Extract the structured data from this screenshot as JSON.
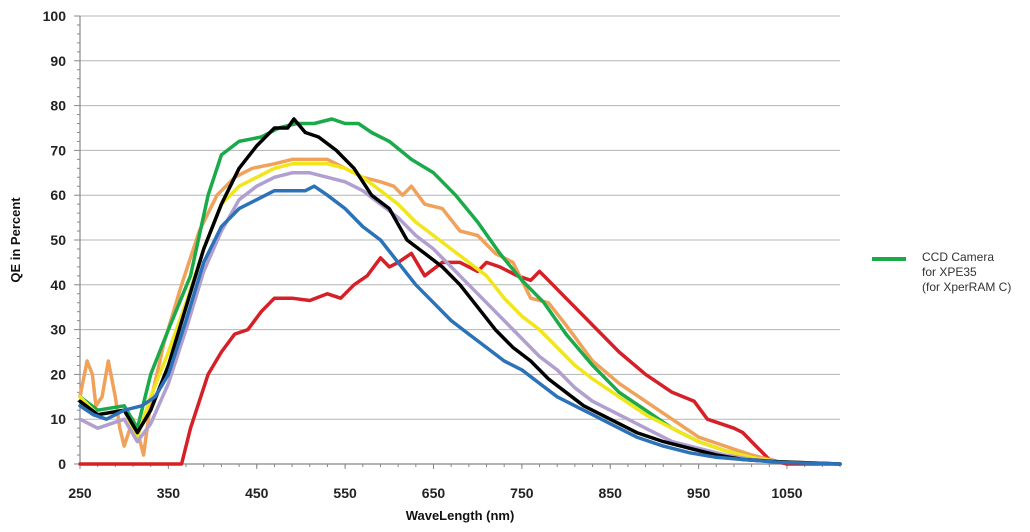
{
  "chart_data": {
    "type": "line",
    "xlabel": "WaveLength (nm)",
    "ylabel": "QE in Percent",
    "xlim": [
      250,
      1110
    ],
    "ylim": [
      0,
      100
    ],
    "x_ticks": [
      "250",
      "350",
      "450",
      "550",
      "650",
      "750",
      "850",
      "950",
      "1050"
    ],
    "y_ticks": [
      "0",
      "10",
      "20",
      "30",
      "40",
      "50",
      "60",
      "70",
      "80",
      "90",
      "100"
    ],
    "grid": "horizontal",
    "legend_position": "right",
    "legend": {
      "color": "#1aaa4a",
      "lines": [
        "CCD Camera",
        "for XPE35",
        "(for XperRAM C)"
      ]
    },
    "series": [
      {
        "color": "#d62027",
        "points": [
          [
            250,
            0
          ],
          [
            355,
            0
          ],
          [
            365,
            0
          ],
          [
            375,
            8
          ],
          [
            385,
            14
          ],
          [
            395,
            20
          ],
          [
            410,
            25
          ],
          [
            425,
            29
          ],
          [
            440,
            30
          ],
          [
            455,
            34
          ],
          [
            470,
            37
          ],
          [
            490,
            37
          ],
          [
            510,
            36.5
          ],
          [
            530,
            38
          ],
          [
            545,
            37
          ],
          [
            560,
            40
          ],
          [
            575,
            42
          ],
          [
            590,
            46
          ],
          [
            600,
            44
          ],
          [
            610,
            45
          ],
          [
            625,
            47
          ],
          [
            640,
            42
          ],
          [
            660,
            45
          ],
          [
            680,
            45
          ],
          [
            700,
            43
          ],
          [
            710,
            45
          ],
          [
            725,
            44
          ],
          [
            745,
            42
          ],
          [
            760,
            41
          ],
          [
            770,
            43
          ],
          [
            780,
            41
          ],
          [
            800,
            37
          ],
          [
            830,
            31
          ],
          [
            860,
            25
          ],
          [
            890,
            20
          ],
          [
            920,
            16
          ],
          [
            945,
            14
          ],
          [
            960,
            10
          ],
          [
            975,
            9
          ],
          [
            990,
            8
          ],
          [
            1000,
            7
          ],
          [
            1015,
            4
          ],
          [
            1030,
            1
          ],
          [
            1050,
            0
          ],
          [
            1110,
            0
          ]
        ]
      },
      {
        "color": "#f0a15a",
        "points": [
          [
            250,
            15
          ],
          [
            258,
            23
          ],
          [
            264,
            20
          ],
          [
            268,
            13
          ],
          [
            275,
            15
          ],
          [
            282,
            23
          ],
          [
            290,
            15
          ],
          [
            295,
            8
          ],
          [
            300,
            4
          ],
          [
            310,
            10
          ],
          [
            318,
            5
          ],
          [
            322,
            2
          ],
          [
            330,
            14
          ],
          [
            345,
            27
          ],
          [
            365,
            40
          ],
          [
            385,
            52
          ],
          [
            405,
            60
          ],
          [
            425,
            64
          ],
          [
            445,
            66
          ],
          [
            470,
            67
          ],
          [
            490,
            68
          ],
          [
            510,
            68
          ],
          [
            530,
            68
          ],
          [
            550,
            66
          ],
          [
            570,
            64
          ],
          [
            590,
            63
          ],
          [
            605,
            62
          ],
          [
            615,
            60
          ],
          [
            625,
            62
          ],
          [
            640,
            58
          ],
          [
            660,
            57
          ],
          [
            680,
            52
          ],
          [
            700,
            51
          ],
          [
            720,
            47
          ],
          [
            740,
            45
          ],
          [
            760,
            37
          ],
          [
            780,
            36
          ],
          [
            800,
            31
          ],
          [
            830,
            23
          ],
          [
            860,
            18
          ],
          [
            890,
            14
          ],
          [
            920,
            10
          ],
          [
            950,
            6
          ],
          [
            980,
            4
          ],
          [
            1010,
            2
          ],
          [
            1040,
            0.5
          ],
          [
            1080,
            0.2
          ],
          [
            1110,
            0
          ]
        ]
      },
      {
        "color": "#1aaa4a",
        "points": [
          [
            250,
            15
          ],
          [
            270,
            12
          ],
          [
            300,
            13
          ],
          [
            315,
            8
          ],
          [
            330,
            20
          ],
          [
            350,
            30
          ],
          [
            375,
            42
          ],
          [
            395,
            60
          ],
          [
            410,
            69
          ],
          [
            430,
            72
          ],
          [
            455,
            73
          ],
          [
            475,
            75
          ],
          [
            495,
            76
          ],
          [
            515,
            76
          ],
          [
            535,
            77
          ],
          [
            550,
            76
          ],
          [
            565,
            76
          ],
          [
            580,
            74
          ],
          [
            600,
            72
          ],
          [
            625,
            68
          ],
          [
            650,
            65
          ],
          [
            675,
            60
          ],
          [
            700,
            54
          ],
          [
            725,
            47
          ],
          [
            750,
            41
          ],
          [
            775,
            36
          ],
          [
            800,
            29
          ],
          [
            830,
            22
          ],
          [
            860,
            16
          ],
          [
            890,
            12
          ],
          [
            920,
            8
          ],
          [
            950,
            5
          ],
          [
            980,
            3
          ],
          [
            1010,
            1.5
          ],
          [
            1040,
            0.5
          ],
          [
            1110,
            0
          ]
        ]
      },
      {
        "color": "#f2e61a",
        "points": [
          [
            250,
            15
          ],
          [
            270,
            11
          ],
          [
            300,
            12
          ],
          [
            315,
            6
          ],
          [
            330,
            15
          ],
          [
            350,
            25
          ],
          [
            370,
            36
          ],
          [
            390,
            48
          ],
          [
            410,
            58
          ],
          [
            430,
            62
          ],
          [
            450,
            64
          ],
          [
            470,
            66
          ],
          [
            490,
            67
          ],
          [
            510,
            67
          ],
          [
            530,
            67
          ],
          [
            550,
            66
          ],
          [
            570,
            64
          ],
          [
            590,
            61
          ],
          [
            610,
            58
          ],
          [
            630,
            54
          ],
          [
            650,
            51
          ],
          [
            670,
            48
          ],
          [
            690,
            45
          ],
          [
            710,
            42
          ],
          [
            730,
            37
          ],
          [
            750,
            33
          ],
          [
            770,
            30
          ],
          [
            790,
            26
          ],
          [
            810,
            22
          ],
          [
            830,
            19
          ],
          [
            860,
            15
          ],
          [
            890,
            11
          ],
          [
            920,
            8
          ],
          [
            950,
            5
          ],
          [
            980,
            3
          ],
          [
            1010,
            1.5
          ],
          [
            1040,
            0.5
          ],
          [
            1110,
            0
          ]
        ]
      },
      {
        "color": "#b09fcf",
        "points": [
          [
            250,
            10
          ],
          [
            270,
            8
          ],
          [
            300,
            10
          ],
          [
            315,
            5
          ],
          [
            330,
            9
          ],
          [
            350,
            18
          ],
          [
            370,
            30
          ],
          [
            390,
            43
          ],
          [
            410,
            52
          ],
          [
            430,
            59
          ],
          [
            450,
            62
          ],
          [
            470,
            64
          ],
          [
            490,
            65
          ],
          [
            510,
            65
          ],
          [
            530,
            64
          ],
          [
            550,
            63
          ],
          [
            570,
            61
          ],
          [
            590,
            58
          ],
          [
            610,
            55
          ],
          [
            630,
            51
          ],
          [
            650,
            48
          ],
          [
            670,
            44
          ],
          [
            690,
            40
          ],
          [
            710,
            36
          ],
          [
            730,
            32
          ],
          [
            750,
            28
          ],
          [
            770,
            24
          ],
          [
            790,
            21
          ],
          [
            810,
            17
          ],
          [
            830,
            14
          ],
          [
            860,
            11
          ],
          [
            890,
            8
          ],
          [
            920,
            5
          ],
          [
            950,
            3.5
          ],
          [
            980,
            2
          ],
          [
            1010,
            1
          ],
          [
            1040,
            0.5
          ],
          [
            1110,
            0
          ]
        ]
      },
      {
        "color": "#000000",
        "points": [
          [
            250,
            14
          ],
          [
            270,
            11
          ],
          [
            300,
            12
          ],
          [
            315,
            7
          ],
          [
            330,
            12
          ],
          [
            350,
            22
          ],
          [
            370,
            35
          ],
          [
            390,
            48
          ],
          [
            410,
            58
          ],
          [
            430,
            66
          ],
          [
            450,
            71
          ],
          [
            470,
            75
          ],
          [
            485,
            75
          ],
          [
            492,
            77
          ],
          [
            505,
            74
          ],
          [
            520,
            73
          ],
          [
            540,
            70
          ],
          [
            560,
            66
          ],
          [
            580,
            60
          ],
          [
            600,
            57
          ],
          [
            620,
            50
          ],
          [
            640,
            47
          ],
          [
            660,
            44
          ],
          [
            680,
            40
          ],
          [
            700,
            35
          ],
          [
            720,
            30
          ],
          [
            740,
            26
          ],
          [
            760,
            23
          ],
          [
            780,
            19
          ],
          [
            800,
            16
          ],
          [
            820,
            13
          ],
          [
            850,
            10
          ],
          [
            880,
            7
          ],
          [
            910,
            5
          ],
          [
            940,
            3.5
          ],
          [
            970,
            2
          ],
          [
            1000,
            1
          ],
          [
            1040,
            0.5
          ],
          [
            1110,
            0
          ]
        ]
      },
      {
        "color": "#2c72b8",
        "points": [
          [
            250,
            13
          ],
          [
            265,
            11
          ],
          [
            280,
            10
          ],
          [
            300,
            12
          ],
          [
            320,
            13
          ],
          [
            335,
            15
          ],
          [
            350,
            20
          ],
          [
            370,
            32
          ],
          [
            390,
            45
          ],
          [
            410,
            53
          ],
          [
            430,
            57
          ],
          [
            450,
            59
          ],
          [
            470,
            61
          ],
          [
            490,
            61
          ],
          [
            505,
            61
          ],
          [
            515,
            62
          ],
          [
            530,
            60
          ],
          [
            550,
            57
          ],
          [
            570,
            53
          ],
          [
            590,
            50
          ],
          [
            610,
            45
          ],
          [
            630,
            40
          ],
          [
            650,
            36
          ],
          [
            670,
            32
          ],
          [
            690,
            29
          ],
          [
            710,
            26
          ],
          [
            730,
            23
          ],
          [
            750,
            21
          ],
          [
            770,
            18
          ],
          [
            790,
            15
          ],
          [
            810,
            13
          ],
          [
            830,
            11
          ],
          [
            850,
            9
          ],
          [
            880,
            6
          ],
          [
            910,
            4
          ],
          [
            940,
            2.5
          ],
          [
            970,
            1.5
          ],
          [
            1000,
            1
          ],
          [
            1040,
            0.4
          ],
          [
            1110,
            0
          ]
        ]
      }
    ]
  }
}
